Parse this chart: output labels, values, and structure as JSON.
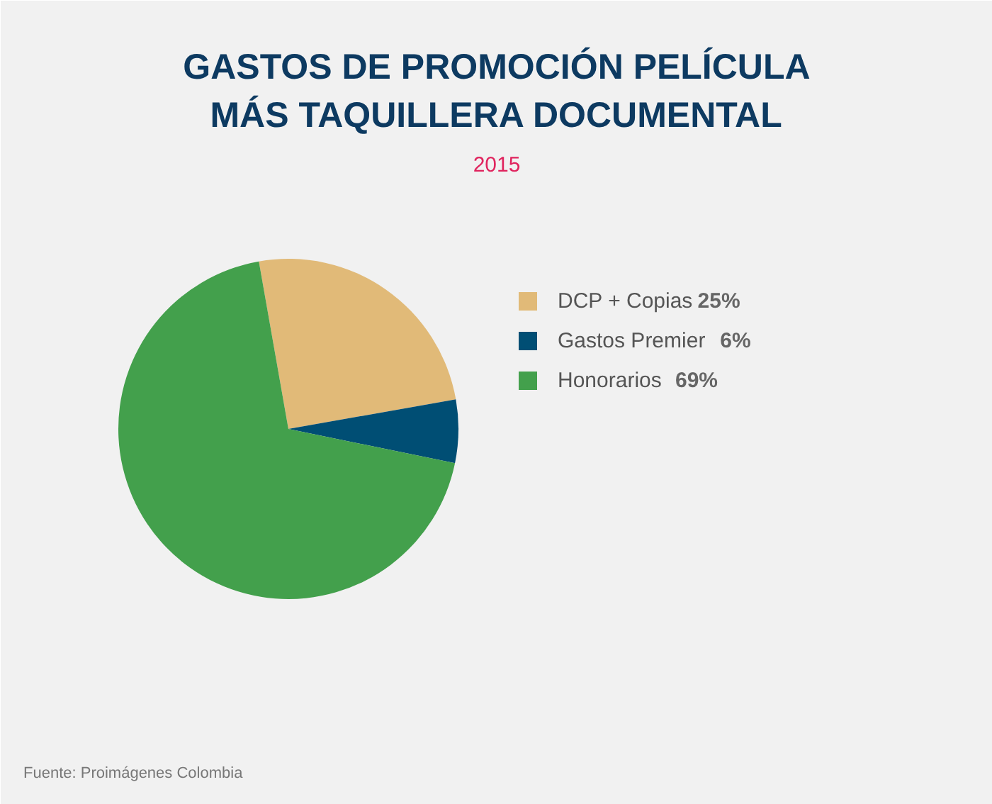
{
  "chart_data": {
    "type": "pie",
    "title": "GASTOS DE PROMOCIÓN PELÍCULA\nMÁS TAQUILLERA DOCUMENTAL",
    "subtitle": "2015",
    "categories": [
      "DCP + Copias",
      "Gastos Premier",
      "Honorarios"
    ],
    "values": [
      25,
      6,
      69
    ],
    "value_labels": [
      "25%",
      "6%",
      "69%"
    ],
    "colors": [
      "#e1ba78",
      "#004e74",
      "#43a04c"
    ],
    "legend": "right",
    "annotations": [
      "Fuente: Proimágenes Colombia"
    ]
  }
}
